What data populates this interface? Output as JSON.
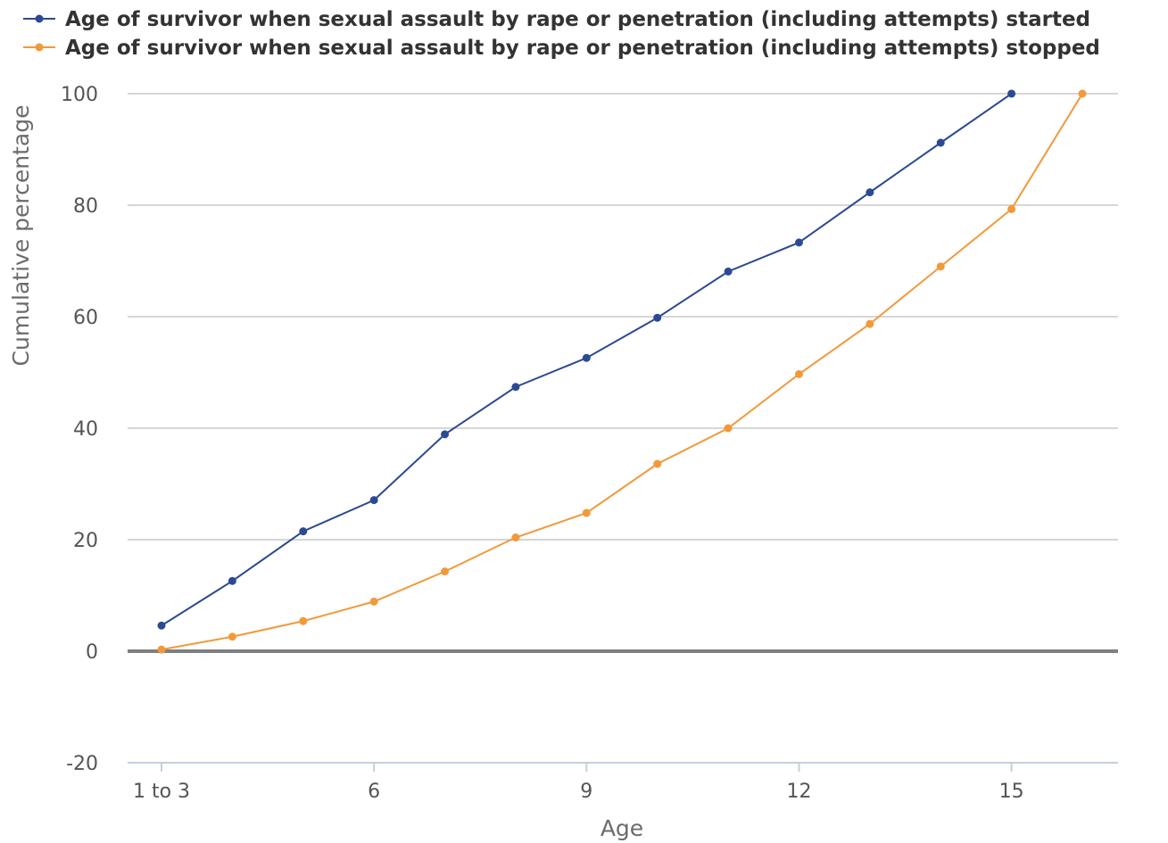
{
  "chart_data": {
    "type": "line",
    "xlabel": "Age",
    "ylabel": "Cumulative percentage",
    "ylim": [
      -20,
      100
    ],
    "yticks": [
      -20,
      0,
      20,
      40,
      60,
      80,
      100
    ],
    "xlim": [
      3,
      16
    ],
    "xticks": [
      {
        "x": 3,
        "label": "1 to 3"
      },
      {
        "x": 6,
        "label": "6"
      },
      {
        "x": 9,
        "label": "9"
      },
      {
        "x": 12,
        "label": "12"
      },
      {
        "x": 15,
        "label": "15"
      }
    ],
    "grid": true,
    "legend_position": "top",
    "series": [
      {
        "name": "Age of survivor when sexual assault by rape or penetration (including attempts) started",
        "color": "#2b4a93",
        "x": [
          3,
          4,
          5,
          6,
          7,
          8,
          9,
          10,
          11,
          12,
          13,
          14,
          15
        ],
        "values": [
          4.6,
          12.6,
          21.5,
          27.1,
          38.9,
          47.4,
          52.6,
          59.8,
          68.1,
          73.3,
          82.3,
          91.2,
          100
        ]
      },
      {
        "name": "Age of survivor when sexual assault by rape or penetration (including attempts) stopped",
        "color": "#f2993a",
        "x": [
          3,
          4,
          5,
          6,
          7,
          8,
          9,
          10,
          11,
          12,
          13,
          14,
          15,
          16
        ],
        "values": [
          0.3,
          2.6,
          5.4,
          8.9,
          14.3,
          20.4,
          24.8,
          33.6,
          40.0,
          49.7,
          58.7,
          69.0,
          79.3,
          100
        ]
      }
    ]
  }
}
